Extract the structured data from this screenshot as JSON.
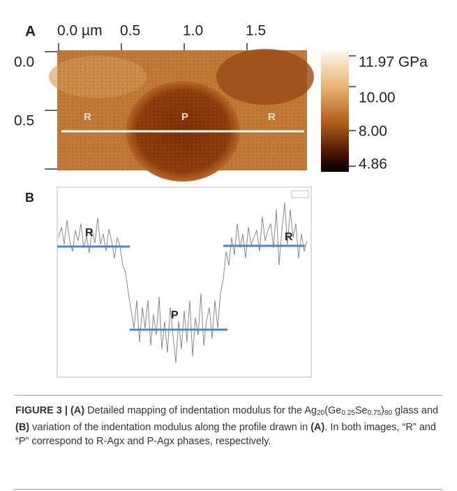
{
  "panel_a": {
    "label": "A",
    "x_ticks": [
      "0.0 µm",
      "0.5",
      "1.0",
      "1.5"
    ],
    "y_ticks": [
      "0.0",
      "0.5"
    ],
    "colorbar_labels": [
      "11.97 GPa",
      "10.00",
      "8.00",
      "4.86"
    ],
    "region_labels": [
      "R",
      "P",
      "R"
    ]
  },
  "panel_b": {
    "label": "B",
    "region_labels": [
      "R",
      "P",
      "R"
    ]
  },
  "caption": {
    "parts": [
      "FIGURE 3 | (A)",
      " Detailed mapping of indentation modulus for the ",
      "Ag",
      "20",
      "(Ge",
      "0.25",
      "Se",
      "0.75",
      ")",
      "80",
      " glass and ",
      "(B)",
      " variation of the indentation modulus along the profile drawn in ",
      "(A)",
      ". In both images, “R” and “P” correspond to R-Agx and P-Agx phases, respectively."
    ]
  }
}
